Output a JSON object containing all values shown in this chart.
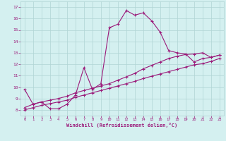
{
  "title": "",
  "xlabel": "Windchill (Refroidissement éolien,°C)",
  "ylabel": "",
  "bg_color": "#d4f0f0",
  "line_color": "#9b1a7a",
  "grid_color": "#b0d4d4",
  "text_color": "#9b1a7a",
  "xlim": [
    -0.5,
    23.5
  ],
  "ylim": [
    7.5,
    17.5
  ],
  "yticks": [
    8,
    9,
    10,
    11,
    12,
    13,
    14,
    15,
    16,
    17
  ],
  "xticks": [
    0,
    1,
    2,
    3,
    4,
    5,
    6,
    7,
    8,
    9,
    10,
    11,
    12,
    13,
    14,
    15,
    16,
    17,
    18,
    19,
    20,
    21,
    22,
    23
  ],
  "line1_x": [
    0,
    1,
    2,
    3,
    4,
    5,
    6,
    7,
    8,
    9,
    10,
    11,
    12,
    13,
    14,
    15,
    16,
    17,
    18,
    19,
    20,
    21,
    22,
    23
  ],
  "line1_y": [
    9.8,
    8.5,
    8.7,
    8.1,
    8.1,
    8.5,
    9.3,
    11.7,
    9.8,
    10.3,
    15.2,
    15.5,
    16.7,
    16.3,
    16.5,
    15.8,
    14.8,
    13.2,
    13.0,
    12.9,
    12.2,
    12.5,
    12.6,
    12.8
  ],
  "line2_x": [
    0,
    1,
    2,
    3,
    4,
    5,
    6,
    7,
    8,
    9,
    10,
    11,
    12,
    13,
    14,
    15,
    16,
    17,
    18,
    19,
    20,
    21,
    22,
    23
  ],
  "line2_y": [
    8.2,
    8.5,
    8.7,
    8.85,
    9.0,
    9.2,
    9.5,
    9.7,
    9.9,
    10.1,
    10.3,
    10.6,
    10.9,
    11.2,
    11.6,
    11.9,
    12.2,
    12.5,
    12.7,
    12.85,
    12.9,
    13.0,
    12.6,
    12.8
  ],
  "line3_x": [
    0,
    1,
    2,
    3,
    4,
    5,
    6,
    7,
    8,
    9,
    10,
    11,
    12,
    13,
    14,
    15,
    16,
    17,
    18,
    19,
    20,
    21,
    22,
    23
  ],
  "line3_y": [
    8.0,
    8.2,
    8.4,
    8.55,
    8.7,
    8.85,
    9.1,
    9.3,
    9.5,
    9.7,
    9.9,
    10.1,
    10.3,
    10.5,
    10.75,
    10.95,
    11.15,
    11.35,
    11.55,
    11.75,
    11.95,
    12.05,
    12.25,
    12.5
  ]
}
